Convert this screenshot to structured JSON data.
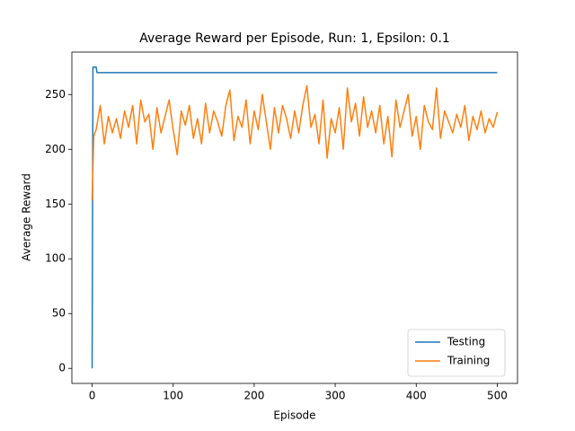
{
  "chart_data": {
    "type": "line",
    "title": "Average Reward per Episode, Run: 1, Epsilon: 0.1",
    "x_label": "Episode",
    "y_label": "Average Reward",
    "xlim": [
      -25,
      525
    ],
    "ylim": [
      -13.75,
      288.75
    ],
    "xticks": [
      0,
      100,
      200,
      300,
      400,
      500
    ],
    "yticks": [
      0,
      50,
      100,
      150,
      200,
      250
    ],
    "legend": "lower right",
    "series": [
      {
        "name": "Testing",
        "color": "#1f77b4",
        "x": [
          0,
          1,
          5,
          6,
          500
        ],
        "values": [
          0,
          275,
          275,
          270,
          270
        ]
      },
      {
        "name": "Training",
        "color": "#ff7f0e",
        "x": [
          0,
          2,
          5,
          10,
          15,
          20,
          25,
          30,
          35,
          40,
          45,
          50,
          55,
          60,
          65,
          70,
          75,
          80,
          85,
          90,
          95,
          100,
          105,
          110,
          115,
          120,
          125,
          130,
          135,
          140,
          145,
          150,
          155,
          160,
          165,
          170,
          175,
          180,
          185,
          190,
          195,
          200,
          205,
          210,
          215,
          220,
          225,
          230,
          235,
          240,
          245,
          250,
          255,
          260,
          265,
          270,
          275,
          280,
          285,
          290,
          295,
          300,
          305,
          310,
          315,
          320,
          325,
          330,
          335,
          340,
          345,
          350,
          355,
          360,
          365,
          370,
          375,
          380,
          385,
          390,
          395,
          400,
          405,
          410,
          415,
          420,
          425,
          430,
          435,
          440,
          445,
          450,
          455,
          460,
          465,
          470,
          475,
          480,
          485,
          490,
          495,
          500
        ],
        "values": [
          153,
          212,
          218,
          240,
          205,
          230,
          215,
          228,
          210,
          235,
          220,
          240,
          205,
          245,
          225,
          232,
          200,
          238,
          215,
          230,
          245,
          218,
          195,
          235,
          222,
          240,
          210,
          228,
          205,
          242,
          215,
          235,
          225,
          212,
          240,
          254,
          208,
          230,
          220,
          245,
          205,
          235,
          218,
          250,
          225,
          200,
          238,
          215,
          240,
          228,
          210,
          235,
          215,
          240,
          258,
          220,
          232,
          205,
          245,
          192,
          228,
          215,
          238,
          200,
          256,
          225,
          242,
          212,
          248,
          220,
          235,
          215,
          240,
          205,
          230,
          193,
          245,
          220,
          235,
          250,
          212,
          230,
          200,
          240,
          225,
          218,
          256,
          210,
          235,
          225,
          215,
          232,
          220,
          240,
          208,
          230,
          218,
          235,
          215,
          228,
          220,
          234
        ]
      }
    ]
  }
}
